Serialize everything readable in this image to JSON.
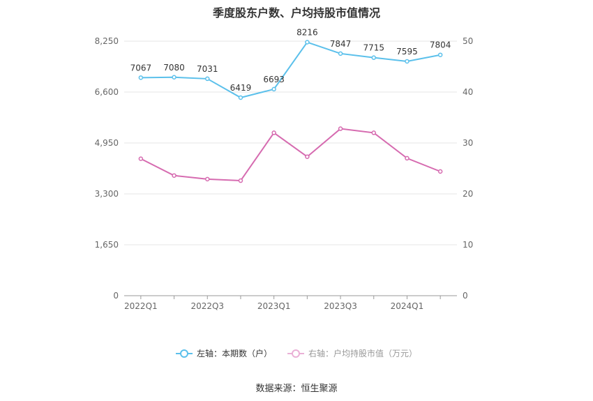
{
  "title": "季度股东户数、户均持股市值情况",
  "source": "数据来源：恒生聚源",
  "legend": {
    "left": "左轴：本期数（户）",
    "right": "右轴：户均持股市值（万元）"
  },
  "colors": {
    "left": "#5bc0eb",
    "right": "#d66bb0",
    "grid": "#e6e6e6",
    "axis": "#999999"
  },
  "chart_data": {
    "type": "line",
    "categories": [
      "2022Q1",
      "2022Q2",
      "2022Q3",
      "2022Q4",
      "2023Q1",
      "2023Q2",
      "2023Q3",
      "2023Q4",
      "2024Q1",
      "2024Q2"
    ],
    "x_tick_labels": [
      "2022Q1",
      "",
      "2022Q3",
      "",
      "2023Q1",
      "",
      "2023Q3",
      "",
      "2024Q1",
      ""
    ],
    "series": [
      {
        "name": "左轴：本期数（户）",
        "axis": "left",
        "values": [
          7067,
          7080,
          7031,
          6419,
          6693,
          8216,
          7847,
          7715,
          7595,
          7804
        ],
        "labels": [
          "7067",
          "7080",
          "7031",
          "6419",
          "6693",
          "8216",
          "7847",
          "7715",
          "7595",
          "7804"
        ]
      },
      {
        "name": "右轴：户均持股市值（万元）",
        "axis": "right",
        "values": [
          26.9,
          23.6,
          22.9,
          22.6,
          32.0,
          27.3,
          32.8,
          32.0,
          27.0,
          24.4
        ]
      }
    ],
    "y_left": {
      "ylim": [
        0,
        8250
      ],
      "ticks": [
        0,
        1650,
        3300,
        4950,
        6600,
        8250
      ],
      "tick_labels": [
        "0",
        "1,650",
        "3,300",
        "4,950",
        "6,600",
        "8,250"
      ]
    },
    "y_right": {
      "ylim": [
        0,
        50
      ],
      "ticks": [
        0,
        10,
        20,
        30,
        40,
        50
      ],
      "tick_labels": [
        "0",
        "10",
        "20",
        "30",
        "40",
        "50"
      ]
    },
    "grid": true,
    "legend_position": "bottom"
  }
}
